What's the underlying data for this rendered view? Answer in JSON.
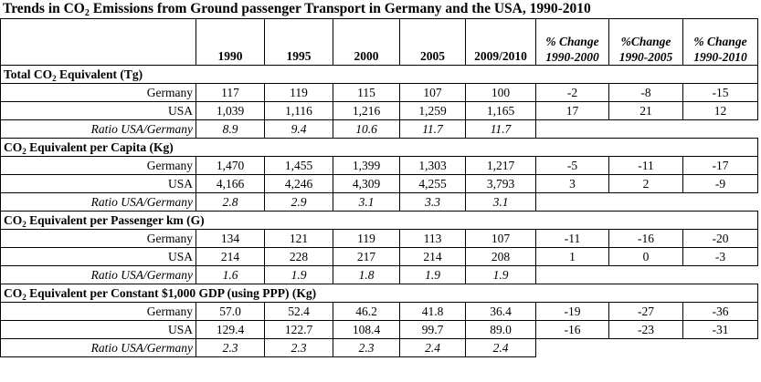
{
  "title": {
    "prefix": "Trends in CO",
    "sub": "2",
    "suffix": " Emissions from Ground passenger Transport in Germany and the USA, 1990-2010"
  },
  "header": {
    "years": [
      "1990",
      "1995",
      "2000",
      "2005",
      "2009/2010"
    ],
    "pct": [
      {
        "line1": "% Change",
        "line2": "1990-2000"
      },
      {
        "line1": "%Change",
        "line2": "1990-2005"
      },
      {
        "line1": "% Change",
        "line2": "1990-2010"
      }
    ]
  },
  "sections": [
    {
      "title_a": "Total CO",
      "title_sub": "2",
      "title_b": " Equivalent (Tg)",
      "germany": {
        "label": "Germany",
        "values": [
          "117",
          "119",
          "115",
          "107",
          "100"
        ],
        "pct": [
          "-2",
          "-8",
          "-15"
        ]
      },
      "usa": {
        "label": "USA",
        "values": [
          "1,039",
          "1,116",
          "1,216",
          "1,259",
          "1,165"
        ],
        "pct": [
          "17",
          "21",
          "12"
        ]
      },
      "ratio": {
        "label": "Ratio USA/Germany",
        "values": [
          "8.9",
          "9.4",
          "10.6",
          "11.7",
          "11.7"
        ]
      }
    },
    {
      "title_a": "CO",
      "title_sub": "2",
      "title_b": " Equivalent per Capita (Kg)",
      "germany": {
        "label": "Germany",
        "values": [
          "1,470",
          "1,455",
          "1,399",
          "1,303",
          "1,217"
        ],
        "pct": [
          "-5",
          "-11",
          "-17"
        ]
      },
      "usa": {
        "label": "USA",
        "values": [
          "4,166",
          "4,246",
          "4,309",
          "4,255",
          "3,793"
        ],
        "pct": [
          "3",
          "2",
          "-9"
        ]
      },
      "ratio": {
        "label": "Ratio USA/Germany",
        "values": [
          "2.8",
          "2.9",
          "3.1",
          "3.3",
          "3.1"
        ]
      }
    },
    {
      "title_a": "CO",
      "title_sub": "2",
      "title_b": " Equivalent per Passenger km (G)",
      "germany": {
        "label": "Germany",
        "values": [
          "134",
          "121",
          "119",
          "113",
          "107"
        ],
        "pct": [
          "-11",
          "-16",
          "-20"
        ]
      },
      "usa": {
        "label": "USA",
        "values": [
          "214",
          "228",
          "217",
          "214",
          "208"
        ],
        "pct": [
          "1",
          "0",
          "-3"
        ]
      },
      "ratio": {
        "label": "Ratio USA/Germany",
        "values": [
          "1.6",
          "1.9",
          "1.8",
          "1.9",
          "1.9"
        ]
      }
    },
    {
      "title_a": "CO",
      "title_sub": "2",
      "title_b": " Equivalent per Constant $1,000 GDP (using PPP) (Kg)",
      "germany": {
        "label": "Germany",
        "values": [
          "57.0",
          "52.4",
          "46.2",
          "41.8",
          "36.4"
        ],
        "pct": [
          "-19",
          "-27",
          "-36"
        ]
      },
      "usa": {
        "label": "USA",
        "values": [
          "129.4",
          "122.7",
          "108.4",
          "99.7",
          "89.0"
        ],
        "pct": [
          "-16",
          "-23",
          "-31"
        ]
      },
      "ratio": {
        "label": "Ratio USA/Germany",
        "values": [
          "2.3",
          "2.3",
          "2.3",
          "2.4",
          "2.4"
        ]
      }
    }
  ]
}
